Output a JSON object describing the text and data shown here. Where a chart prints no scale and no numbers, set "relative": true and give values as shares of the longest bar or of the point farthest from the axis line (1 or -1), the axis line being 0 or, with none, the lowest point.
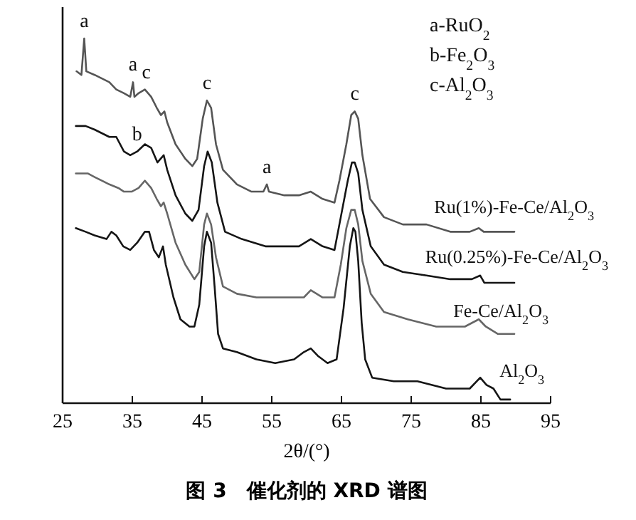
{
  "chart_data": {
    "type": "line",
    "title": "图 3　催化剂的 XRD 谱图",
    "xlabel": "2θ/(°)",
    "relative": true,
    "tick_labels": "x",
    "xlim": [
      25,
      95
    ],
    "xticks": [
      25,
      35,
      45,
      55,
      65,
      75,
      85,
      95
    ],
    "annotations": [
      "a-RuO$_{2}$",
      "b-Fe$_{2}$O$_{3}$",
      "c-Al$_{2}$O$_{3}$",
      {
        "text": "a",
        "x": 28.1,
        "y": 1.0
      },
      {
        "text": "a",
        "x": 35.1,
        "y": 0.88
      },
      {
        "text": "c",
        "x": 37.0,
        "y": 0.86
      },
      {
        "text": "b",
        "x": 35.7,
        "y": 0.69
      },
      {
        "text": "c",
        "x": 45.7,
        "y": 0.83
      },
      {
        "text": "a",
        "x": 54.3,
        "y": 0.6
      },
      {
        "text": "c",
        "x": 66.9,
        "y": 0.8
      }
    ],
    "series": [
      {
        "name": "Ru(1%)-Fe-Ce/Al$_{2}$O$_{3}$",
        "color": "#555555",
        "x": [
          27.0,
          27.7,
          28.1,
          28.4,
          29.6,
          31.7,
          32.7,
          33.8,
          34.7,
          35.1,
          35.3,
          35.9,
          36.8,
          37.7,
          38.5,
          39.1,
          39.6,
          40.0,
          41.2,
          42.6,
          43.6,
          44.3,
          45.1,
          45.7,
          46.3,
          47.0,
          48.0,
          50.0,
          52.1,
          53.8,
          54.3,
          54.6,
          56.8,
          58.9,
          60.6,
          62.3,
          64.0,
          64.7,
          65.7,
          66.4,
          66.9,
          67.4,
          68.0,
          69.1,
          71.1,
          73.8,
          77.2,
          80.6,
          83.4,
          84.7,
          85.4,
          87.4,
          89.8
        ],
        "values": [
          0.91,
          0.9,
          1.0,
          0.91,
          0.9,
          0.88,
          0.86,
          0.85,
          0.84,
          0.88,
          0.84,
          0.85,
          0.86,
          0.84,
          0.81,
          0.79,
          0.8,
          0.77,
          0.71,
          0.67,
          0.65,
          0.67,
          0.78,
          0.83,
          0.81,
          0.71,
          0.64,
          0.6,
          0.58,
          0.58,
          0.6,
          0.58,
          0.57,
          0.57,
          0.58,
          0.56,
          0.55,
          0.61,
          0.71,
          0.79,
          0.8,
          0.78,
          0.68,
          0.56,
          0.51,
          0.49,
          0.49,
          0.47,
          0.47,
          0.48,
          0.47,
          0.47,
          0.47
        ]
      },
      {
        "name": "Ru(0.25%)-Fe-Ce/Al$_{2}$O$_{3}$",
        "color": "#151515",
        "x": [
          26.9,
          28.3,
          29.6,
          31.7,
          32.7,
          33.8,
          34.7,
          35.7,
          36.8,
          37.7,
          38.6,
          39.5,
          40.0,
          41.2,
          42.6,
          43.6,
          44.5,
          45.3,
          45.8,
          46.4,
          47.2,
          48.3,
          50.7,
          54.1,
          56.8,
          58.9,
          60.6,
          62.3,
          64.0,
          64.9,
          65.9,
          66.5,
          66.9,
          67.4,
          68.0,
          69.2,
          71.1,
          73.8,
          77.2,
          80.6,
          83.7,
          84.9,
          85.5,
          87.4,
          89.8
        ],
        "values": [
          0.76,
          0.76,
          0.75,
          0.73,
          0.73,
          0.69,
          0.68,
          0.69,
          0.71,
          0.7,
          0.66,
          0.68,
          0.64,
          0.57,
          0.52,
          0.5,
          0.53,
          0.65,
          0.69,
          0.66,
          0.55,
          0.47,
          0.45,
          0.43,
          0.43,
          0.43,
          0.45,
          0.43,
          0.42,
          0.51,
          0.61,
          0.66,
          0.66,
          0.63,
          0.53,
          0.43,
          0.38,
          0.36,
          0.35,
          0.34,
          0.34,
          0.35,
          0.33,
          0.33,
          0.33
        ]
      },
      {
        "name": "Fe-Ce/Al$_{2}$O$_{3}$",
        "color": "#666666",
        "x": [
          26.9,
          28.6,
          29.6,
          31.7,
          33.0,
          33.8,
          34.9,
          35.9,
          36.8,
          37.7,
          38.5,
          39.1,
          39.5,
          40.0,
          41.2,
          42.6,
          43.9,
          44.6,
          45.3,
          45.7,
          46.3,
          47.0,
          48.0,
          50.0,
          52.8,
          56.8,
          59.6,
          60.6,
          62.3,
          64.0,
          64.9,
          65.7,
          66.4,
          66.9,
          67.4,
          68.0,
          69.2,
          71.1,
          74.5,
          78.6,
          82.7,
          84.7,
          85.7,
          87.4,
          89.8
        ],
        "values": [
          0.63,
          0.63,
          0.62,
          0.6,
          0.59,
          0.58,
          0.58,
          0.59,
          0.61,
          0.59,
          0.56,
          0.54,
          0.55,
          0.52,
          0.44,
          0.38,
          0.34,
          0.36,
          0.49,
          0.52,
          0.49,
          0.4,
          0.32,
          0.3,
          0.29,
          0.29,
          0.29,
          0.31,
          0.29,
          0.29,
          0.38,
          0.48,
          0.53,
          0.53,
          0.49,
          0.39,
          0.3,
          0.25,
          0.23,
          0.21,
          0.21,
          0.23,
          0.21,
          0.19,
          0.19
        ]
      },
      {
        "name": "Al$_{2}$O$_{3}$",
        "color": "#151515",
        "x": [
          26.9,
          28.3,
          29.6,
          31.3,
          32.0,
          32.7,
          33.7,
          34.7,
          35.7,
          36.8,
          37.4,
          38.1,
          38.8,
          39.4,
          39.8,
          40.9,
          41.9,
          43.2,
          43.9,
          44.6,
          45.3,
          45.7,
          46.3,
          46.8,
          47.3,
          48.0,
          50.0,
          52.8,
          55.5,
          58.2,
          59.6,
          60.6,
          61.6,
          63.0,
          64.3,
          65.3,
          66.2,
          66.7,
          67.0,
          67.4,
          67.9,
          68.4,
          69.4,
          72.5,
          75.9,
          80.0,
          83.4,
          84.9,
          85.8,
          86.8,
          87.8,
          89.2
        ],
        "values": [
          0.48,
          0.47,
          0.46,
          0.45,
          0.47,
          0.46,
          0.43,
          0.42,
          0.44,
          0.47,
          0.47,
          0.42,
          0.4,
          0.43,
          0.38,
          0.29,
          0.23,
          0.21,
          0.21,
          0.27,
          0.43,
          0.47,
          0.44,
          0.32,
          0.19,
          0.15,
          0.14,
          0.12,
          0.11,
          0.12,
          0.14,
          0.15,
          0.13,
          0.11,
          0.12,
          0.26,
          0.43,
          0.48,
          0.47,
          0.39,
          0.22,
          0.12,
          0.07,
          0.06,
          0.06,
          0.04,
          0.04,
          0.07,
          0.05,
          0.04,
          0.01,
          0.01
        ]
      }
    ]
  }
}
